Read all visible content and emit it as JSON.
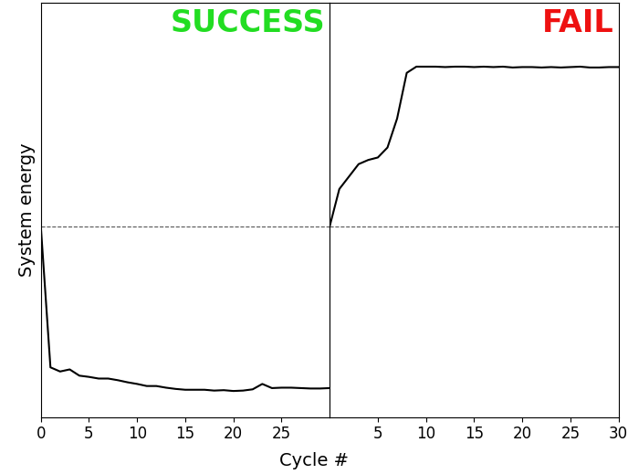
{
  "chart_data": [
    {
      "type": "line",
      "title": "SUCCESS",
      "x_label": "Cycle #",
      "y_label": "System energy",
      "x": [
        0,
        1,
        2,
        3,
        4,
        5,
        6,
        7,
        8,
        9,
        10,
        11,
        12,
        13,
        14,
        15,
        16,
        17,
        18,
        19,
        20,
        21,
        22,
        23,
        24,
        25,
        26,
        27,
        28,
        29,
        30
      ],
      "values": [
        46,
        12,
        11,
        11.5,
        10,
        9.7,
        9.3,
        9.3,
        8.9,
        8.4,
        8,
        7.5,
        7.5,
        7.1,
        6.8,
        6.6,
        6.6,
        6.6,
        6.4,
        6.5,
        6.3,
        6.4,
        6.7,
        8,
        7,
        7.1,
        7.1,
        7,
        6.9,
        6.9,
        7
      ],
      "color": "#000000",
      "line_style": "solid",
      "reference_line": 46,
      "xlim": [
        0,
        30
      ],
      "xticks": [
        0,
        5,
        10,
        15,
        20,
        25
      ],
      "ylim": [
        0,
        100
      ],
      "tick_labels": "x"
    },
    {
      "type": "line",
      "title": "FAIL",
      "x": [
        0,
        1,
        2,
        3,
        4,
        5,
        6,
        7,
        8,
        9,
        10,
        11,
        12,
        13,
        14,
        15,
        16,
        17,
        18,
        19,
        20,
        21,
        22,
        23,
        24,
        25,
        26,
        27,
        28,
        29,
        30
      ],
      "values": [
        46,
        55,
        58,
        61,
        62,
        62.6,
        65,
        72,
        83,
        84.5,
        84.5,
        84.5,
        84.4,
        84.5,
        84.5,
        84.4,
        84.5,
        84.4,
        84.5,
        84.3,
        84.4,
        84.4,
        84.3,
        84.4,
        84.3,
        84.4,
        84.5,
        84.3,
        84.3,
        84.4,
        84.4
      ],
      "color": "#000000",
      "line_style": "solid",
      "reference_line": 46,
      "xlim": [
        0,
        30
      ],
      "xticks": [
        5,
        10,
        15,
        20,
        25,
        30
      ],
      "ylim": [
        0,
        100
      ],
      "tick_labels": "x"
    }
  ]
}
